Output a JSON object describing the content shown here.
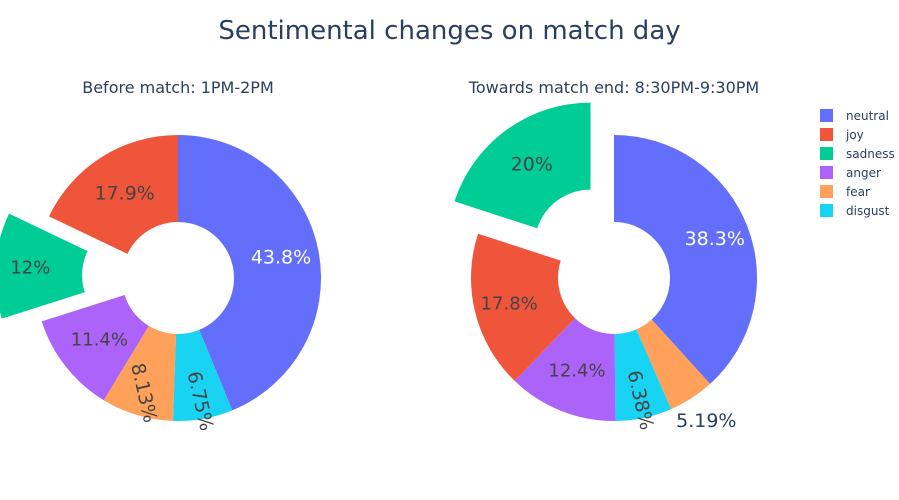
{
  "title": "Sentimental changes on match day",
  "colors": {
    "neutral": "#636efa",
    "joy": "#ef553b",
    "sadness": "#00cc96",
    "anger": "#ab63fa",
    "fear": "#ffa15a",
    "disgust": "#19d3f3"
  },
  "legend": [
    "neutral",
    "joy",
    "sadness",
    "anger",
    "fear",
    "disgust"
  ],
  "chart_data": [
    {
      "type": "pie",
      "hole": true,
      "title": "Before match: 1PM-2PM",
      "labels": [
        "neutral",
        "disgust",
        "fear",
        "anger",
        "sadness",
        "joy"
      ],
      "values": [
        43.8,
        6.75,
        8.13,
        11.4,
        12,
        17.9
      ],
      "text": [
        "43.8%",
        "6.75%",
        "8.13%",
        "11.4%",
        "12%",
        "17.9%"
      ],
      "pulled": [
        "sadness"
      ]
    },
    {
      "type": "pie",
      "hole": true,
      "title": "Towards match end: 8:30PM-9:30PM",
      "labels": [
        "neutral",
        "fear",
        "disgust",
        "anger",
        "joy",
        "sadness"
      ],
      "values": [
        38.3,
        5.19,
        6.38,
        12.4,
        17.8,
        20
      ],
      "text": [
        "38.3%",
        "5.19%",
        "6.38%",
        "12.4%",
        "17.8%",
        "20%"
      ],
      "pulled": [
        "sadness"
      ]
    }
  ]
}
